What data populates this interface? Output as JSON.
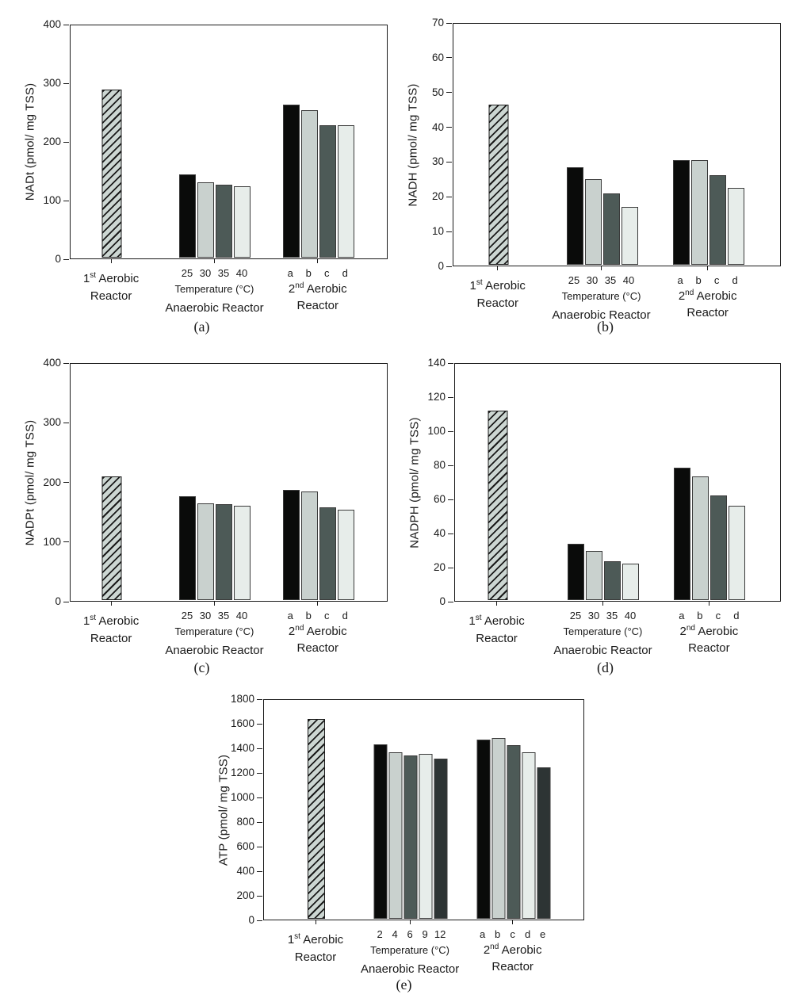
{
  "figure": {
    "background": "#ffffff"
  },
  "colors": {
    "black": "#0a0b0a",
    "light_gray": "#c9d1ce",
    "dark_slate": "#4d5a57",
    "pale_gray": "#e7edea",
    "charcoal": "#2d3434",
    "hatch_bg": "#ccd6d2",
    "hatch_line": "#1a1a1a",
    "axis": "#1a1a1a",
    "bar_border": "#3a3a3a"
  },
  "labels": {
    "first_reactor": {
      "num": "1",
      "sup": "st",
      "rest": "Aerobic",
      "line2": "Reactor"
    },
    "second_reactor": {
      "num": "2",
      "sup": "nd",
      "rest": "Aerobic",
      "line2": "Reactor"
    },
    "anaerobic_reactor": {
      "name": "Anaerobic Reactor",
      "axis": "Temperature (°C)"
    }
  },
  "chart_data": [
    {
      "panel": "a",
      "caption": "(a)",
      "type": "bar",
      "ylabel": "NADt (pmol/ mg TSS)",
      "ylim": [
        0,
        400
      ],
      "yticks": [
        0,
        100,
        200,
        300,
        400
      ],
      "legend": "none",
      "grid": false,
      "first_aerobic": {
        "label": "1st Aerobic Reactor",
        "value": 287,
        "style": "hatched"
      },
      "anaerobic": {
        "label": "Anaerobic Reactor",
        "xlabel": "Temperature (°C)",
        "tick_labels": [
          "25",
          "30",
          "35",
          "40"
        ],
        "values": [
          142,
          128,
          124,
          122
        ]
      },
      "second_aerobic": {
        "label": "2nd Aerobic Reactor",
        "tick_labels": [
          "a",
          "b",
          "c",
          "d"
        ],
        "values": [
          261,
          251,
          226,
          226
        ]
      }
    },
    {
      "panel": "b",
      "caption": "(b)",
      "type": "bar",
      "ylabel": "NADH (pmol/ mg TSS)",
      "ylim": [
        0,
        70
      ],
      "yticks": [
        0,
        10,
        20,
        30,
        40,
        50,
        60,
        70
      ],
      "legend": "none",
      "grid": false,
      "first_aerobic": {
        "label": "1st Aerobic Reactor",
        "value": 46,
        "style": "hatched"
      },
      "anaerobic": {
        "label": "Anaerobic Reactor",
        "xlabel": "Temperature (°C)",
        "tick_labels": [
          "25",
          "30",
          "35",
          "40"
        ],
        "values": [
          28,
          24.7,
          20.6,
          16.6
        ]
      },
      "second_aerobic": {
        "label": "2nd Aerobic Reactor",
        "tick_labels": [
          "a",
          "b",
          "c",
          "d"
        ],
        "values": [
          30.2,
          30,
          25.7,
          22.1
        ]
      }
    },
    {
      "panel": "c",
      "caption": "(c)",
      "type": "bar",
      "ylabel": "NADPt (pmol/ mg TSS)",
      "ylim": [
        0,
        400
      ],
      "yticks": [
        0,
        100,
        200,
        300,
        400
      ],
      "legend": "none",
      "grid": false,
      "first_aerobic": {
        "label": "1st Aerobic Reactor",
        "value": 207,
        "style": "hatched"
      },
      "anaerobic": {
        "label": "Anaerobic Reactor",
        "xlabel": "Temperature (°C)",
        "tick_labels": [
          "25",
          "30",
          "35",
          "40"
        ],
        "values": [
          174,
          162.5,
          160.5,
          158
        ]
      },
      "second_aerobic": {
        "label": "2nd Aerobic Reactor",
        "tick_labels": [
          "a",
          "b",
          "c",
          "d"
        ],
        "values": [
          184.5,
          182.5,
          156,
          151.5
        ]
      }
    },
    {
      "panel": "d",
      "caption": "(d)",
      "type": "bar",
      "ylabel": "NADPH (pmol/ mg TSS)",
      "ylim": [
        0,
        140
      ],
      "yticks": [
        0,
        20,
        40,
        60,
        80,
        100,
        120,
        140
      ],
      "legend": "none",
      "grid": false,
      "first_aerobic": {
        "label": "1st Aerobic Reactor",
        "value": 111,
        "style": "hatched"
      },
      "anaerobic": {
        "label": "Anaerobic Reactor",
        "xlabel": "Temperature (°C)",
        "tick_labels": [
          "25",
          "30",
          "35",
          "40"
        ],
        "values": [
          33,
          28.7,
          22.8,
          21.5
        ]
      },
      "second_aerobic": {
        "label": "2nd Aerobic Reactor",
        "tick_labels": [
          "a",
          "b",
          "c",
          "d"
        ],
        "values": [
          77.5,
          72.7,
          61.5,
          55.3
        ]
      }
    },
    {
      "panel": "e",
      "caption": "(e)",
      "type": "bar",
      "ylabel": "ATP (pmol/ mg TSS)",
      "ylim": [
        0,
        1800
      ],
      "yticks": [
        0,
        200,
        400,
        600,
        800,
        1000,
        1200,
        1400,
        1600,
        1800
      ],
      "legend": "none",
      "grid": false,
      "first_aerobic": {
        "label": "1st Aerobic Reactor",
        "value": 1625,
        "style": "hatched"
      },
      "anaerobic": {
        "label": "Anaerobic Reactor",
        "xlabel": "Temperature (°C)",
        "tick_labels": [
          "2",
          "4",
          "6",
          "9",
          "12"
        ],
        "values": [
          1420,
          1352,
          1330,
          1340,
          1300
        ]
      },
      "second_aerobic": {
        "label": "2nd Aerobic Reactor",
        "tick_labels": [
          "a",
          "b",
          "c",
          "d",
          "e"
        ],
        "values": [
          1458,
          1470,
          1410,
          1355,
          1230
        ]
      }
    }
  ]
}
